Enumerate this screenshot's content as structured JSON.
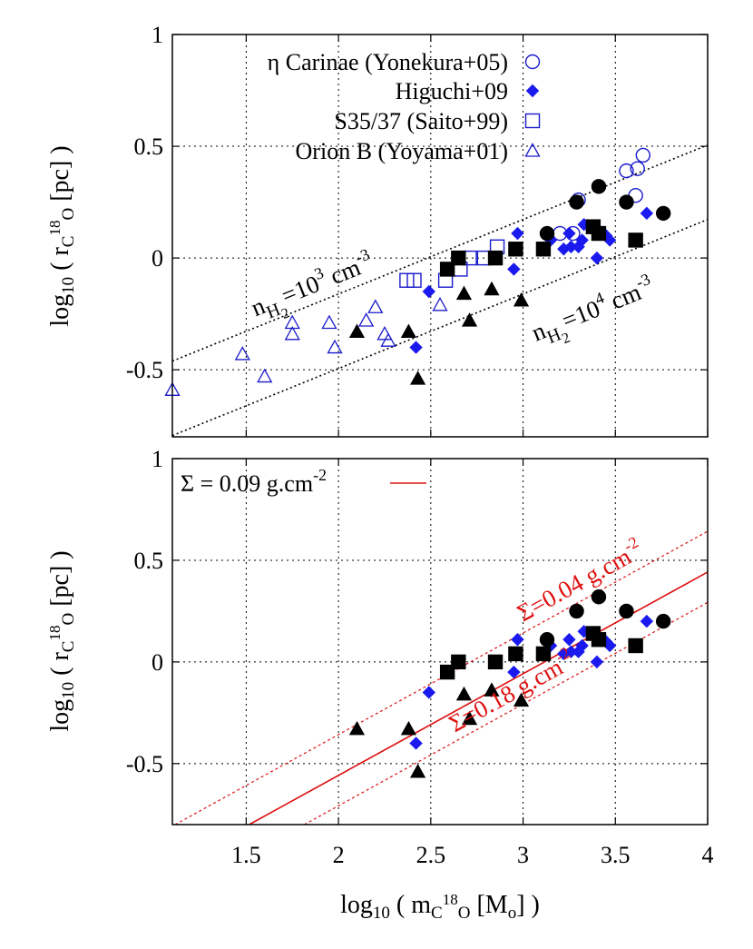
{
  "chart_data": [
    {
      "type": "scatter",
      "panel": "top",
      "ylabel": {
        "pre": "log",
        "sub1": "10",
        "mid": " ( r",
        "sub2": "C",
        "sup": "18",
        "sub3": "O",
        "post": " [pc] )"
      },
      "xlim": [
        1.1,
        4.0
      ],
      "ylim": [
        -0.8,
        1.0
      ],
      "yticks": [
        "-0.5",
        "0",
        "0.5",
        "1"
      ],
      "ytick_values": [
        -0.5,
        0,
        0.5,
        1
      ],
      "grid": true,
      "legend_position": "top-left",
      "legend": [
        {
          "label": "η Carinae (Yonekura+05)",
          "marker": "open-circle"
        },
        {
          "label": "Higuchi+09",
          "marker": "filled-diamond"
        },
        {
          "label": "S35/37 (Saito+99)",
          "marker": "open-square"
        },
        {
          "label": "Orion B (Yoyama+01)",
          "marker": "open-triangle"
        }
      ],
      "colors": {
        "literature": "#1a1acc",
        "higuchi": "#1a1aee",
        "this_work": "#000000",
        "density_lines": "#000000"
      },
      "density_lines": [
        {
          "label_base": "n",
          "label_sub1": "H",
          "label_sub2": "2",
          "label_mid": "=10",
          "label_sup": "3",
          "label_unit": " cm",
          "label_unit_sup": "-3",
          "slope": 0.3333,
          "intercept": -0.8277
        },
        {
          "label_base": "n",
          "label_sub1": "H",
          "label_sub2": "2",
          "label_mid": "=10",
          "label_sup": "4",
          "label_unit": " cm",
          "label_unit_sup": "-3",
          "slope": 0.3333,
          "intercept": -1.161
        }
      ],
      "series": [
        {
          "name": "η Carinae (Yonekura+05)",
          "marker": "open-circle",
          "x": [
            3.2,
            3.27,
            3.3,
            3.56,
            3.61,
            3.62,
            3.65
          ],
          "y": [
            0.11,
            0.11,
            0.26,
            0.39,
            0.28,
            0.4,
            0.46
          ]
        },
        {
          "name": "Higuchi+09",
          "marker": "filled-diamond",
          "x": [
            2.42,
            2.49,
            2.95,
            2.97,
            3.15,
            3.22,
            3.25,
            3.26,
            3.3,
            3.32,
            3.33,
            3.37,
            3.4,
            3.45,
            3.47,
            3.67
          ],
          "y": [
            -0.4,
            -0.15,
            -0.05,
            0.11,
            0.08,
            0.04,
            0.11,
            0.05,
            0.05,
            0.08,
            0.15,
            0.14,
            0.0,
            0.1,
            0.08,
            0.2
          ]
        },
        {
          "name": "S35/37 (Saito+99)",
          "marker": "open-square",
          "x": [
            2.37,
            2.41,
            2.58,
            2.66,
            2.71,
            2.79,
            2.86
          ],
          "y": [
            -0.1,
            -0.1,
            -0.1,
            -0.05,
            0.0,
            0.0,
            0.05
          ]
        },
        {
          "name": "Orion B (Yoyama+01)",
          "marker": "open-triangle",
          "x": [
            1.1,
            1.48,
            1.6,
            1.75,
            1.75,
            1.95,
            1.98,
            2.15,
            2.2,
            2.25,
            2.27,
            2.55
          ],
          "y": [
            -0.59,
            -0.43,
            -0.53,
            -0.29,
            -0.34,
            -0.29,
            -0.4,
            -0.28,
            -0.22,
            -0.34,
            -0.37,
            -0.21
          ]
        },
        {
          "name": "",
          "marker": "filled-circle",
          "x": [
            3.13,
            3.29,
            3.41,
            3.56,
            3.76
          ],
          "y": [
            0.11,
            0.25,
            0.32,
            0.25,
            0.2
          ]
        },
        {
          "name": "",
          "marker": "filled-square",
          "x": [
            2.59,
            2.65,
            2.85,
            2.96,
            3.11,
            3.38,
            3.41,
            3.61
          ],
          "y": [
            -0.05,
            0.0,
            0.0,
            0.04,
            0.04,
            0.14,
            0.11,
            0.08
          ]
        },
        {
          "name": "",
          "marker": "filled-triangle",
          "x": [
            2.1,
            2.38,
            2.43,
            2.68,
            2.71,
            2.83,
            2.99
          ],
          "y": [
            -0.33,
            -0.33,
            -0.54,
            -0.16,
            -0.28,
            -0.14,
            -0.19
          ]
        }
      ]
    },
    {
      "type": "scatter",
      "panel": "bottom",
      "xlabel": {
        "pre": "log",
        "sub1": "10",
        "mid": " ( m",
        "sub2": "C",
        "sup": "18",
        "sub3": "O",
        "post": " [M",
        "sub4": "o",
        "post2": "] )"
      },
      "ylabel": {
        "pre": "log",
        "sub1": "10",
        "mid": " ( r",
        "sub2": "C",
        "sup": "18",
        "sub3": "O",
        "post": " [pc] )"
      },
      "xlim": [
        1.1,
        4.0
      ],
      "ylim": [
        -0.8,
        1.0
      ],
      "xticks": [
        "1.5",
        "2",
        "2.5",
        "3",
        "3.5",
        "4"
      ],
      "xtick_values": [
        1.5,
        2.0,
        2.5,
        3.0,
        3.5,
        4.0
      ],
      "yticks": [
        "-0.5",
        "0",
        "0.5",
        "1"
      ],
      "ytick_values": [
        -0.5,
        0,
        0.5,
        1
      ],
      "grid": true,
      "legend_position": "top-left",
      "legend": [
        {
          "label_pre": "Σ = 0.09 g.cm",
          "label_sup": "-2",
          "marker": "solid-red-line"
        }
      ],
      "colors": {
        "surface_lines": "#dd1111",
        "higuchi": "#1a1aee",
        "this_work": "#000000"
      },
      "surface_density_lines": [
        {
          "label_pre": "Σ=0.04 g.cm",
          "label_sup": "-2",
          "style": "dotted",
          "slope": 0.5,
          "intercept": -1.3575
        },
        {
          "label_pre": "Σ = 0.09 g.cm",
          "label_sup": "-2",
          "style": "solid",
          "slope": 0.5,
          "intercept": -1.558
        },
        {
          "label_pre": "Σ=0.18 g.cm",
          "label_sup": "-2",
          "style": "dotted",
          "slope": 0.5,
          "intercept": -1.7075
        }
      ],
      "series": [
        {
          "name": "Higuchi+09",
          "marker": "filled-diamond",
          "x": [
            2.42,
            2.49,
            2.95,
            2.97,
            3.15,
            3.22,
            3.25,
            3.26,
            3.3,
            3.32,
            3.33,
            3.37,
            3.4,
            3.45,
            3.47,
            3.67
          ],
          "y": [
            -0.4,
            -0.15,
            -0.05,
            0.11,
            0.08,
            0.04,
            0.11,
            0.05,
            0.05,
            0.08,
            0.15,
            0.14,
            0.0,
            0.1,
            0.08,
            0.2
          ]
        },
        {
          "name": "",
          "marker": "filled-circle",
          "x": [
            3.13,
            3.29,
            3.41,
            3.56,
            3.76
          ],
          "y": [
            0.11,
            0.25,
            0.32,
            0.25,
            0.2
          ]
        },
        {
          "name": "",
          "marker": "filled-square",
          "x": [
            2.59,
            2.65,
            2.85,
            2.96,
            3.11,
            3.38,
            3.41,
            3.61
          ],
          "y": [
            -0.05,
            0.0,
            0.0,
            0.04,
            0.04,
            0.14,
            0.11,
            0.08
          ]
        },
        {
          "name": "",
          "marker": "filled-triangle",
          "x": [
            2.1,
            2.38,
            2.43,
            2.68,
            2.71,
            2.83,
            2.99
          ],
          "y": [
            -0.33,
            -0.33,
            -0.54,
            -0.16,
            -0.28,
            -0.14,
            -0.19
          ]
        }
      ]
    }
  ]
}
